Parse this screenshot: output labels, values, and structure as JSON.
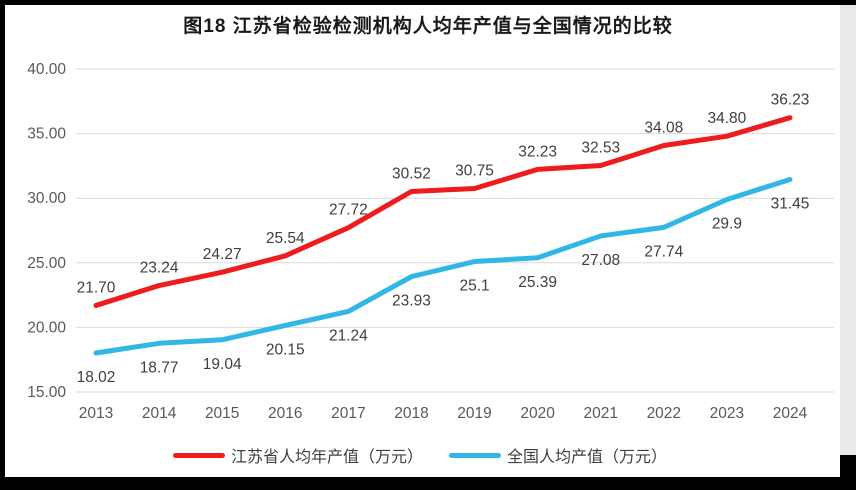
{
  "chart_data": {
    "type": "line",
    "title": "图18  江苏省检验检测机构人均年产值与全国情况的比较",
    "categories": [
      "2013",
      "2014",
      "2015",
      "2016",
      "2017",
      "2018",
      "2019",
      "2020",
      "2021",
      "2022",
      "2023",
      "2024"
    ],
    "series": [
      {
        "name": "江苏省人均年产值（万元）",
        "color": "#ee1c1c",
        "values": [
          21.7,
          23.24,
          24.27,
          25.54,
          27.72,
          30.52,
          30.75,
          32.23,
          32.53,
          34.08,
          34.8,
          36.23
        ],
        "labels": [
          "21.70",
          "23.24",
          "24.27",
          "25.54",
          "27.72",
          "30.52",
          "30.75",
          "32.23",
          "32.53",
          "34.08",
          "34.80",
          "36.23"
        ],
        "label_position": "above"
      },
      {
        "name": "全国人均产值（万元）",
        "color": "#31b7e6",
        "values": [
          18.02,
          18.77,
          19.04,
          20.15,
          21.24,
          23.93,
          25.1,
          25.39,
          27.08,
          27.74,
          29.9,
          31.45
        ],
        "labels": [
          "18.02",
          "18.77",
          "19.04",
          "20.15",
          "21.24",
          "23.93",
          "25.1",
          "25.39",
          "27.08",
          "27.74",
          "29.9",
          "31.45"
        ],
        "label_position": "below"
      }
    ],
    "ylim": [
      15,
      40
    ],
    "y_ticks": [
      "40.00",
      "35.00",
      "30.00",
      "25.00",
      "20.00",
      "15.00"
    ],
    "grid": true,
    "legend_position": "bottom",
    "colors": {
      "grid": "#d9d9d9",
      "tick_text": "#595959",
      "data_label": "#3f3f3f",
      "title_text": "#1a1a1a"
    }
  }
}
